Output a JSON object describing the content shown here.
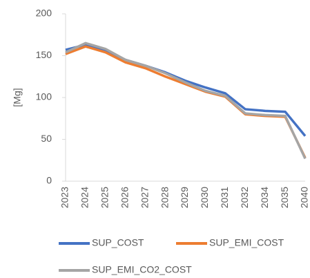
{
  "chart_data": {
    "type": "line",
    "y_label": "[Mg]",
    "categories": [
      "2023",
      "2024",
      "2025",
      "2026",
      "2027",
      "2028",
      "2029",
      "2030",
      "2031",
      "2032",
      "2034",
      "2035",
      "2040"
    ],
    "series": [
      {
        "name": "SUP_COST",
        "color": "#4472c4",
        "values": [
          157,
          163,
          157,
          145,
          138,
          130,
          120,
          112,
          105,
          86,
          84,
          83,
          54
        ]
      },
      {
        "name": "SUP_EMI_COST",
        "color": "#ed7d31",
        "values": [
          152,
          161,
          154,
          142,
          135,
          125,
          116,
          107,
          101,
          80,
          78,
          77,
          28
        ]
      },
      {
        "name": "SUP_EMI_CO2_COST",
        "color": "#a5a5a5",
        "values": [
          154,
          165,
          158,
          145,
          138,
          129,
          118,
          108,
          102,
          81,
          79,
          78,
          27
        ]
      }
    ],
    "ylim": [
      0,
      200
    ],
    "yticks": [
      0,
      50,
      100,
      150,
      200
    ],
    "grid": false
  }
}
